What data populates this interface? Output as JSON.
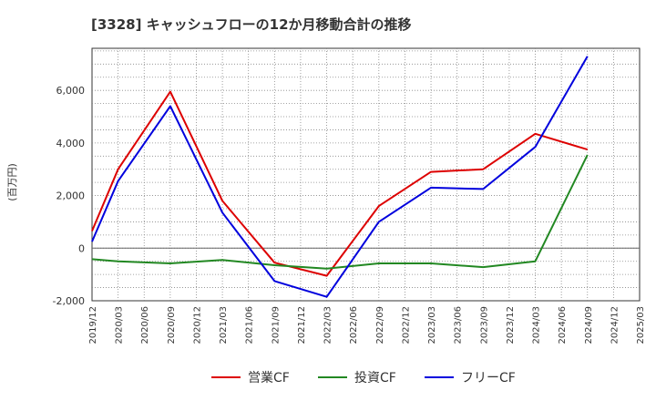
{
  "chart_data": {
    "type": "line",
    "title": "[3328]  キャッシュフローの12か月移動合計の推移",
    "ylabel": "(百万円)",
    "xlabel": "",
    "ylim": [
      -2000,
      7600
    ],
    "yticks": [
      -2000,
      0,
      2000,
      4000,
      6000
    ],
    "ytick_labels": [
      "-2,000",
      "0",
      "2,000",
      "4,000",
      "6,000"
    ],
    "categories": [
      "2019/12",
      "2020/03",
      "2020/06",
      "2020/09",
      "2020/12",
      "2021/03",
      "2021/06",
      "2021/09",
      "2021/12",
      "2022/03",
      "2022/06",
      "2022/09",
      "2022/12",
      "2023/03",
      "2023/06",
      "2023/09",
      "2023/12",
      "2024/03",
      "2024/06",
      "2024/09",
      "2024/12",
      "2025/03"
    ],
    "grid": true,
    "legend_position": "bottom",
    "series": [
      {
        "name": "営業CF",
        "color": "#dd0000",
        "points": [
          [
            "2019/12",
            650
          ],
          [
            "2020/03",
            3000
          ],
          [
            "2020/09",
            5950
          ],
          [
            "2021/03",
            1800
          ],
          [
            "2021/09",
            -550
          ],
          [
            "2022/03",
            -1050
          ],
          [
            "2022/09",
            1600
          ],
          [
            "2023/03",
            2900
          ],
          [
            "2023/09",
            3000
          ],
          [
            "2024/03",
            4350
          ],
          [
            "2024/09",
            3750
          ]
        ]
      },
      {
        "name": "投資CF",
        "color": "#228822",
        "points": [
          [
            "2019/12",
            -420
          ],
          [
            "2020/03",
            -500
          ],
          [
            "2020/09",
            -580
          ],
          [
            "2021/03",
            -450
          ],
          [
            "2021/09",
            -650
          ],
          [
            "2022/03",
            -780
          ],
          [
            "2022/09",
            -580
          ],
          [
            "2023/03",
            -580
          ],
          [
            "2023/09",
            -720
          ],
          [
            "2024/03",
            -500
          ],
          [
            "2024/09",
            3550
          ]
        ]
      },
      {
        "name": "フリーCF",
        "color": "#0000dd",
        "points": [
          [
            "2019/12",
            250
          ],
          [
            "2020/03",
            2550
          ],
          [
            "2020/09",
            5400
          ],
          [
            "2021/03",
            1350
          ],
          [
            "2021/09",
            -1250
          ],
          [
            "2022/03",
            -1850
          ],
          [
            "2022/09",
            1000
          ],
          [
            "2023/03",
            2300
          ],
          [
            "2023/09",
            2250
          ],
          [
            "2024/03",
            3850
          ],
          [
            "2024/09",
            7300
          ]
        ]
      }
    ]
  }
}
